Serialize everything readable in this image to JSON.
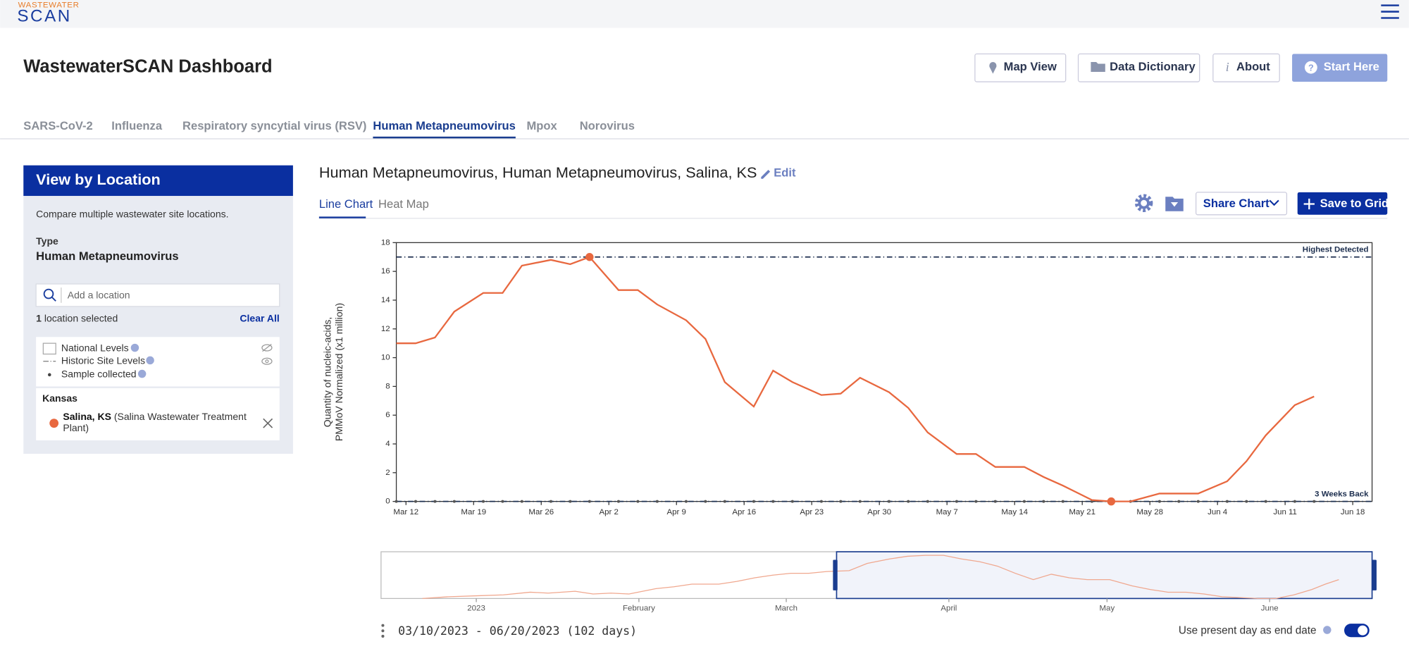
{
  "header": {
    "logo_top": "WASTEWATER",
    "logo_bottom": "SCAN",
    "title": "WastewaterSCAN Dashboard",
    "buttons": [
      "Map View",
      "Data Dictionary",
      "About",
      "Start Here"
    ]
  },
  "tabs": [
    "SARS-CoV-2",
    "Influenza",
    "Respiratory syncytial virus (RSV)",
    "Human Metapneumovirus",
    "Mpox",
    "Norovirus"
  ],
  "sidebar": {
    "title": "View by Location",
    "description": "Compare multiple wastewater site locations.",
    "type_label": "Type",
    "type_value": "Human Metapneumovirus",
    "search_placeholder": "Add a location",
    "selected_count": "1",
    "selected_text": "location selected",
    "clear": "Clear All",
    "legend": [
      "National Levels",
      "Historic Site Levels",
      "Sample collected"
    ],
    "state": "Kansas",
    "site_name": "Salina, KS",
    "site_detail": [
      "(Salina Wastewater Treatment",
      "Plant)"
    ]
  },
  "panel": {
    "title": "Human Metapneumovirus, Human Metapneumovirus, Salina, KS",
    "edit": "Edit",
    "views": [
      "Line Chart",
      "Heat Map"
    ],
    "share": "Share Chart",
    "save": "Save to Grid",
    "brush_labels": [
      "2023",
      "February",
      "March",
      "April",
      "May",
      "June"
    ],
    "range": "03/10/2023 - 06/20/2023 (102 days)",
    "toggle_label": "Use present day as end date"
  },
  "chart": {
    "type": "line",
    "ylabel": [
      "Quantity of nucleic-acids,",
      "PMMoV Normalized (x1 million)"
    ],
    "x": [
      "2023-03-11",
      "2023-03-13",
      "2023-03-15",
      "2023-03-17",
      "2023-03-20",
      "2023-03-22",
      "2023-03-24",
      "2023-03-27",
      "2023-03-29",
      "2023-03-31",
      "2023-04-03",
      "2023-04-05",
      "2023-04-07",
      "2023-04-10",
      "2023-04-12",
      "2023-04-14",
      "2023-04-17",
      "2023-04-19",
      "2023-04-21",
      "2023-04-24",
      "2023-04-26",
      "2023-04-28",
      "2023-05-01",
      "2023-05-03",
      "2023-05-05",
      "2023-05-08",
      "2023-05-10",
      "2023-05-12",
      "2023-05-15",
      "2023-05-17",
      "2023-05-19",
      "2023-05-22",
      "2023-05-24",
      "2023-05-26",
      "2023-05-29",
      "2023-05-31",
      "2023-06-02",
      "2023-06-05",
      "2023-06-07",
      "2023-06-09",
      "2023-06-12",
      "2023-06-14"
    ],
    "series": [
      {
        "name": "Salina, KS",
        "color": "#e8683f",
        "values": [
          11,
          11,
          11.4,
          13.2,
          14.5,
          14.5,
          16.4,
          16.8,
          16.5,
          17,
          14.7,
          14.7,
          13.7,
          12.6,
          11.3,
          8.3,
          6.6,
          9.1,
          8.3,
          7.4,
          7.5,
          8.6,
          7.6,
          6.5,
          4.8,
          3.3,
          3.3,
          2.4,
          2.4,
          1.7,
          1.1,
          0.1,
          0,
          0,
          0.55,
          0.55,
          0.55,
          1.4,
          2.8,
          4.6,
          6.7,
          7.3
        ]
      }
    ],
    "xlim": [
      "2023-03-11",
      "2023-06-20"
    ],
    "xticks": [
      {
        "value": "2023-03-12",
        "label": "Mar 12"
      },
      {
        "value": "2023-03-19",
        "label": "Mar 19"
      },
      {
        "value": "2023-03-26",
        "label": "Mar 26"
      },
      {
        "value": "2023-04-02",
        "label": "Apr 2"
      },
      {
        "value": "2023-04-09",
        "label": "Apr 9"
      },
      {
        "value": "2023-04-16",
        "label": "Apr 16"
      },
      {
        "value": "2023-04-23",
        "label": "Apr 23"
      },
      {
        "value": "2023-04-30",
        "label": "Apr 30"
      },
      {
        "value": "2023-05-07",
        "label": "May 7"
      },
      {
        "value": "2023-05-14",
        "label": "May 14"
      },
      {
        "value": "2023-05-21",
        "label": "May 21"
      },
      {
        "value": "2023-05-28",
        "label": "May 28"
      },
      {
        "value": "2023-06-04",
        "label": "Jun 4"
      },
      {
        "value": "2023-06-11",
        "label": "Jun 11"
      },
      {
        "value": "2023-06-18",
        "label": "Jun 18"
      }
    ],
    "ylim": [
      0,
      18
    ],
    "yticks": [
      0,
      2,
      4,
      6,
      8,
      10,
      12,
      14,
      16,
      18
    ],
    "reference_lines": [
      {
        "label": "Highest Detected",
        "value": 17
      },
      {
        "label": "3 Weeks Back",
        "value": 0
      }
    ]
  }
}
